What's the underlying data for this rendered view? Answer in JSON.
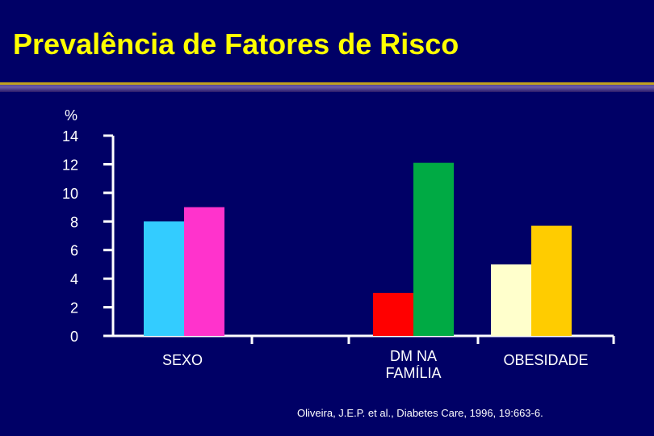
{
  "slide": {
    "title": "Prevalência de Fatores de Risco",
    "citation": "Oliveira, J.E.P. et al., Diabetes Care, 1996, 19:663-6."
  },
  "colors": {
    "background": "#000066",
    "title": "#ffff00",
    "axis": "#ffffff",
    "text": "#ffffff"
  },
  "chart_data": {
    "type": "bar",
    "title": "",
    "ylabel": "%",
    "xlabel": "",
    "ylim": [
      0,
      14
    ],
    "yticks": [
      "0",
      "2",
      "4",
      "6",
      "8",
      "10",
      "12",
      "14"
    ],
    "grid": false,
    "legend": "none",
    "groups": [
      {
        "category_lines": [
          "SEXO"
        ],
        "bars": [
          {
            "value": 8.0,
            "color": "#33ccff"
          },
          {
            "value": 9.0,
            "color": "#ff33cc"
          }
        ]
      },
      {
        "category_lines": [
          "DM NA",
          "FAMÍLIA"
        ],
        "bars": [
          {
            "value": 3.0,
            "color": "#ff0000"
          },
          {
            "value": 12.1,
            "color": "#00aa44"
          }
        ]
      },
      {
        "category_lines": [
          "OBESIDADE"
        ],
        "bars": [
          {
            "value": 5.0,
            "color": "#ffffcc"
          },
          {
            "value": 7.7,
            "color": "#ffcc00"
          }
        ]
      }
    ]
  }
}
